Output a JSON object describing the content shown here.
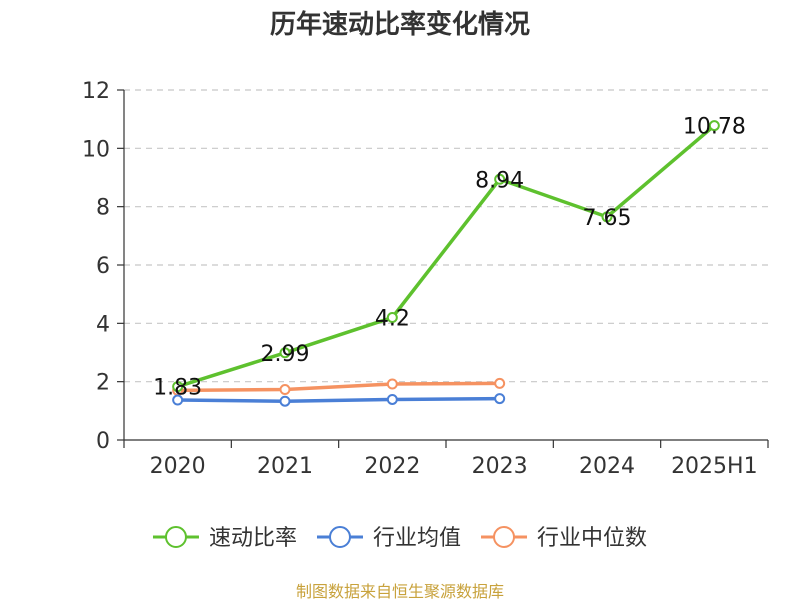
{
  "chart_data": {
    "type": "line",
    "title": "历年速动比率变化情况",
    "categories": [
      "2020",
      "2021",
      "2022",
      "2023",
      "2024",
      "2025H1"
    ],
    "ylim": [
      0,
      12
    ],
    "yticks": [
      0,
      2,
      4,
      6,
      8,
      10,
      12
    ],
    "grid": true,
    "legend_position": "bottom",
    "series": [
      {
        "name": "速动比率",
        "color": "#5ec12e",
        "values": [
          1.83,
          2.99,
          4.2,
          8.94,
          7.65,
          10.78
        ],
        "labels": [
          "1.83",
          "2.99",
          "4.2",
          "8.94",
          "7.65",
          "10.78"
        ],
        "show_labels": true
      },
      {
        "name": "行业均值",
        "color": "#4a7fd6",
        "values": [
          1.37,
          1.33,
          1.39,
          1.42,
          null,
          null
        ],
        "show_labels": false
      },
      {
        "name": "行业中位数",
        "color": "#f59261",
        "values": [
          1.7,
          1.73,
          1.92,
          1.94,
          null,
          null
        ],
        "show_labels": false
      }
    ],
    "source": "制图数据来自恒生聚源数据库"
  }
}
